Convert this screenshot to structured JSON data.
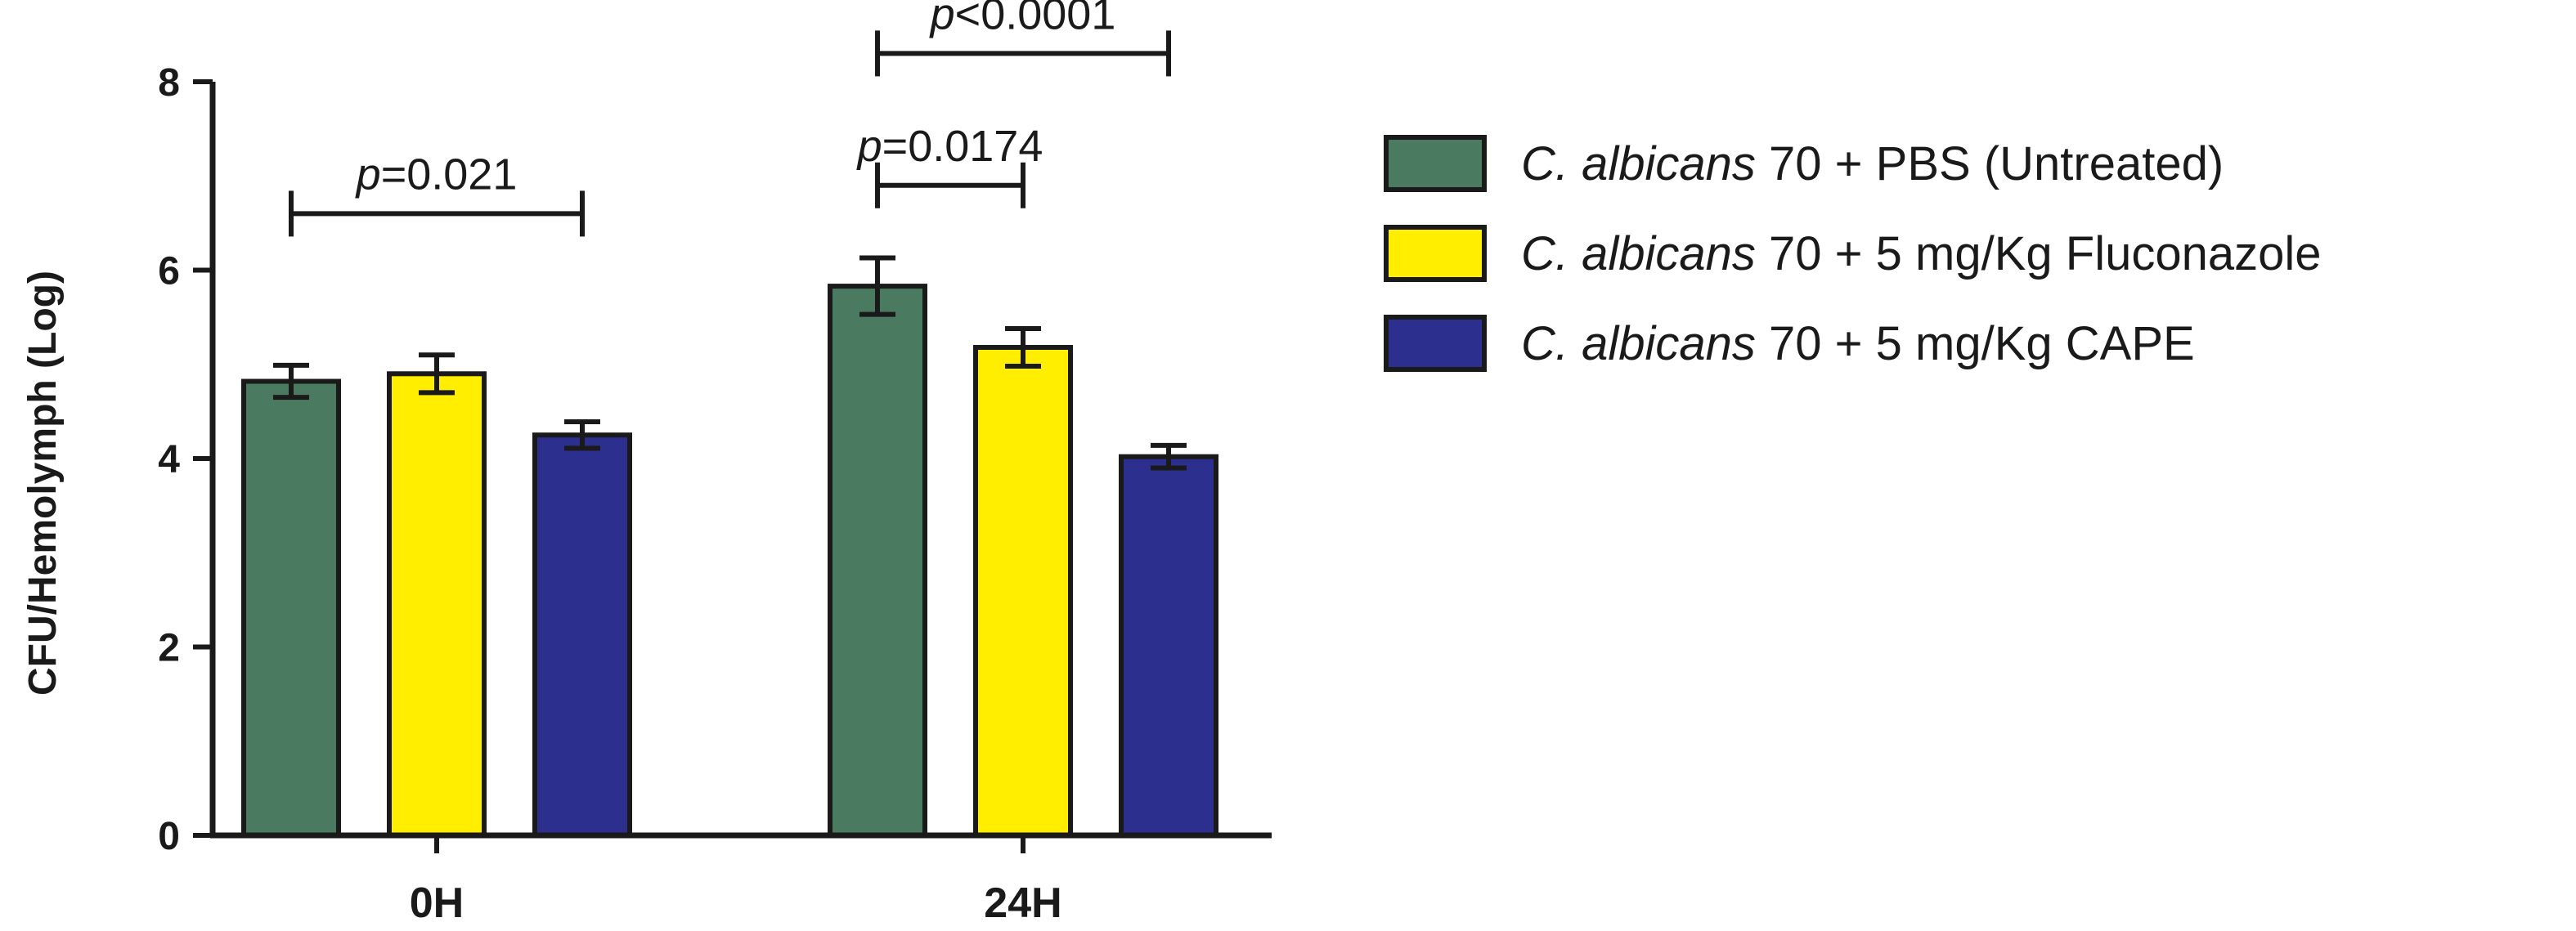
{
  "chart_data": {
    "type": "bar",
    "title": "",
    "xlabel": "",
    "ylabel": "CFU/Hemolymph (Log)",
    "ylim": [
      0,
      8
    ],
    "yticks": [
      0,
      2,
      4,
      6,
      8
    ],
    "grid": false,
    "legend_position": "right",
    "categories": [
      "0H",
      "24H"
    ],
    "series": [
      {
        "name_italic": "C. albicans",
        "name_rest": " 70 + PBS (Untreated)",
        "color": "#4a7a5f",
        "values": [
          4.82,
          5.83
        ],
        "errors": [
          0.17,
          0.3
        ]
      },
      {
        "name_italic": "C. albicans",
        "name_rest": " 70 + 5 mg/Kg Fluconazole",
        "color": "#ffee00",
        "values": [
          4.9,
          5.18
        ],
        "errors": [
          0.2,
          0.2
        ]
      },
      {
        "name_italic": "C. albicans",
        "name_rest": " 70 + 5 mg/Kg CAPE",
        "color": "#2d2f8f",
        "values": [
          4.25,
          4.02
        ],
        "errors": [
          0.14,
          0.12
        ]
      }
    ],
    "annotations": [
      {
        "category": 0,
        "from_series": 0,
        "to_series": 2,
        "y": 6.6,
        "prefix": "p",
        "text": "=0.021"
      },
      {
        "category": 1,
        "from_series": 0,
        "to_series": 1,
        "y": 6.9,
        "prefix": "p",
        "text": "=0.0174"
      },
      {
        "category": 1,
        "from_series": 0,
        "to_series": 2,
        "y": 8.3,
        "prefix": "p",
        "text": "<0.0001"
      }
    ]
  }
}
